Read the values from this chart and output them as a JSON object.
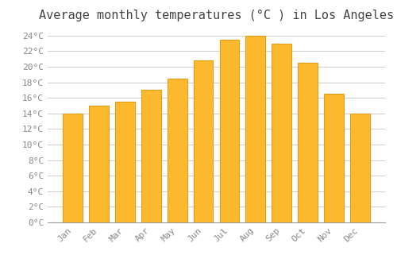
{
  "title": "Average monthly temperatures (°C ) in Los Angeles",
  "months": [
    "Jan",
    "Feb",
    "Mar",
    "Apr",
    "May",
    "Jun",
    "Jul",
    "Aug",
    "Sep",
    "Oct",
    "Nov",
    "Dec"
  ],
  "values": [
    14.0,
    15.0,
    15.5,
    17.0,
    18.5,
    20.8,
    23.5,
    24.0,
    23.0,
    20.5,
    16.5,
    14.0
  ],
  "bar_color": "#FDB92E",
  "bar_edge_color": "#E8960A",
  "background_color": "#FFFFFF",
  "plot_bg_color": "#FFFFFF",
  "grid_color": "#CCCCCC",
  "ylim": [
    0,
    25
  ],
  "ytick_step": 2,
  "title_fontsize": 11,
  "tick_fontsize": 8,
  "tick_label_color": "#888888",
  "title_color": "#444444",
  "font_family": "monospace"
}
